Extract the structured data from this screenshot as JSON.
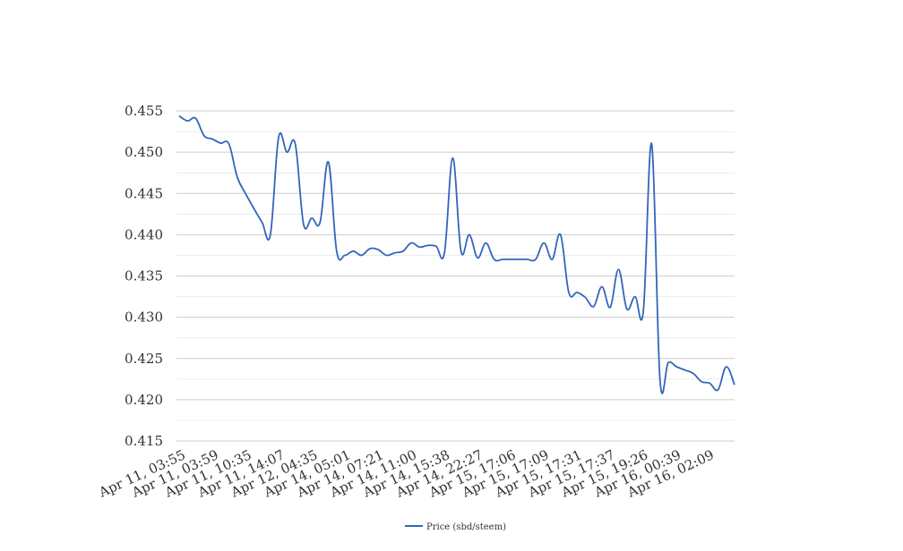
{
  "chart_data": {
    "type": "line",
    "title": "",
    "xlabel": "",
    "ylabel": "",
    "ylim": [
      0.415,
      0.455
    ],
    "yticks": [
      "0.455",
      "0.450",
      "0.445",
      "0.440",
      "0.435",
      "0.430",
      "0.425",
      "0.420",
      "0.415"
    ],
    "xtick_labels": [
      "Apr 11, 03:55",
      "Apr 11, 03:59",
      "Apr 11, 10:35",
      "Apr 11, 14:07",
      "Apr 12, 04:35",
      "Apr 14, 05:01",
      "Apr 14, 07:21",
      "Apr 14, 11:00",
      "Apr 14, 15:38",
      "Apr 14, 22:27",
      "Apr 15, 17:06",
      "Apr 15, 17:09",
      "Apr 15, 17:31",
      "Apr 15, 17:37",
      "Apr 15, 19:26",
      "Apr 16, 00:39",
      "Apr 16, 02:09"
    ],
    "grid": true,
    "legend_position": "bottom",
    "line_color": "#3366bb",
    "series": [
      {
        "name": "Price (sbd/steem)",
        "values": [
          0.4544,
          0.4538,
          0.4541,
          0.452,
          0.4516,
          0.4511,
          0.451,
          0.447,
          0.445,
          0.4432,
          0.4415,
          0.44,
          0.4518,
          0.45,
          0.451,
          0.4413,
          0.442,
          0.4415,
          0.4488,
          0.438,
          0.4375,
          0.438,
          0.4375,
          0.4383,
          0.4382,
          0.4375,
          0.4378,
          0.438,
          0.439,
          0.4385,
          0.4387,
          0.4386,
          0.4378,
          0.4493,
          0.438,
          0.44,
          0.4372,
          0.439,
          0.437,
          0.437,
          0.437,
          0.437,
          0.437,
          0.437,
          0.439,
          0.437,
          0.44,
          0.433,
          0.433,
          0.4324,
          0.4313,
          0.4337,
          0.4312,
          0.4358,
          0.431,
          0.4325,
          0.4308,
          0.451,
          0.4225,
          0.4245,
          0.424,
          0.4236,
          0.4232,
          0.4222,
          0.422,
          0.4212,
          0.424,
          0.4218
        ]
      }
    ]
  }
}
